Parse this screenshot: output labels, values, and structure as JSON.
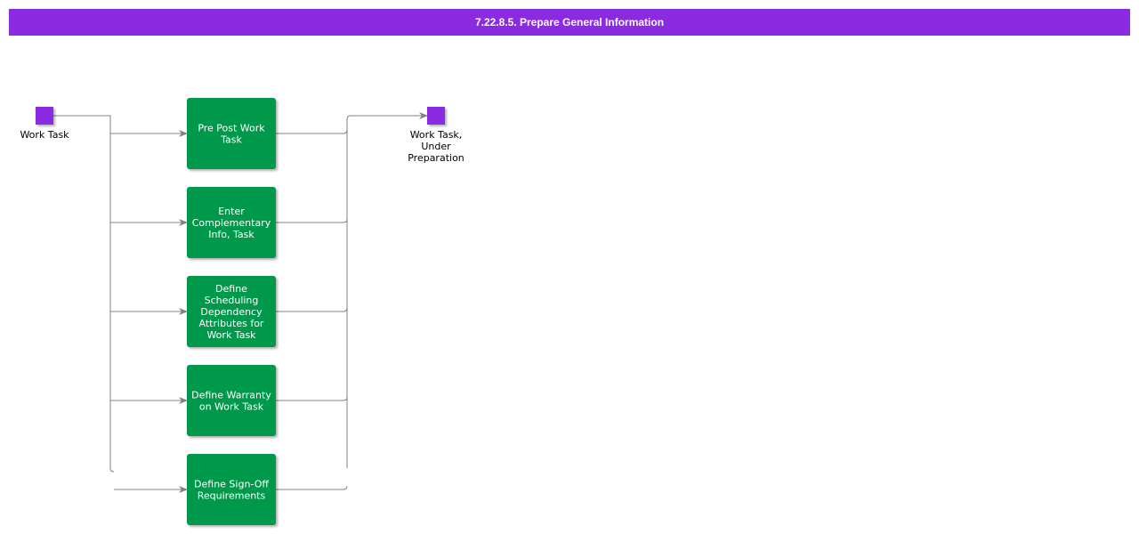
{
  "header": {
    "title": "7.22.8.5. Prepare General Information"
  },
  "colors": {
    "header": "#8a2be2",
    "event": "#8a2be2",
    "task": "#00994c",
    "connector": "#808080"
  },
  "start_event": {
    "label": [
      "Work Task"
    ]
  },
  "end_event": {
    "label": [
      "Work Task,",
      "Under",
      "Preparation"
    ]
  },
  "tasks": [
    {
      "label": [
        "Pre Post Work",
        "Task"
      ]
    },
    {
      "label": [
        "Enter",
        "Complementary",
        "Info, Task"
      ]
    },
    {
      "label": [
        "Define",
        "Scheduling",
        "Dependency",
        "Attributes for",
        "Work Task"
      ]
    },
    {
      "label": [
        "Define Warranty",
        "on Work Task"
      ]
    },
    {
      "label": [
        "Define Sign-Off",
        "Requirements"
      ]
    }
  ]
}
